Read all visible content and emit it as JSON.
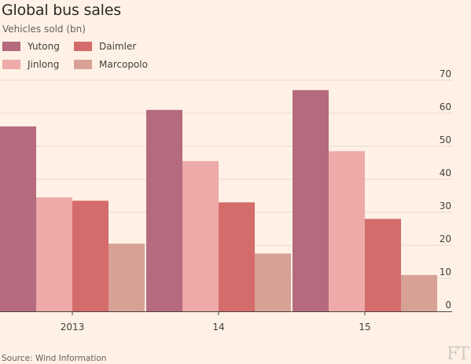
{
  "header": {
    "title": "Global bus sales",
    "subtitle": "Vehicles sold (bn)"
  },
  "footer": {
    "source": "Source: Wind Information",
    "logo_text": "FT"
  },
  "chart_data": {
    "type": "bar",
    "title": "Global bus sales",
    "subtitle": "Vehicles sold (bn)",
    "categories": [
      "2013",
      "14",
      "15"
    ],
    "series": [
      {
        "name": "Yutong",
        "color": "#b56a7e",
        "values": [
          56,
          61,
          67
        ]
      },
      {
        "name": "Jinlong",
        "color": "#edaaa8",
        "values": [
          34.5,
          45.5,
          48.5
        ]
      },
      {
        "name": "Daimler",
        "color": "#d46c6c",
        "values": [
          33.5,
          33,
          28
        ]
      },
      {
        "name": "Marcopolo",
        "color": "#d8a196",
        "values": [
          20.5,
          17.5,
          11
        ]
      }
    ],
    "ylim": [
      0,
      70
    ],
    "yticks": [
      0,
      10,
      20,
      30,
      40,
      50,
      60,
      70
    ],
    "y_axis_side": "right",
    "grid": true,
    "legend_placement": "top-left",
    "background": "#fff1e5"
  }
}
